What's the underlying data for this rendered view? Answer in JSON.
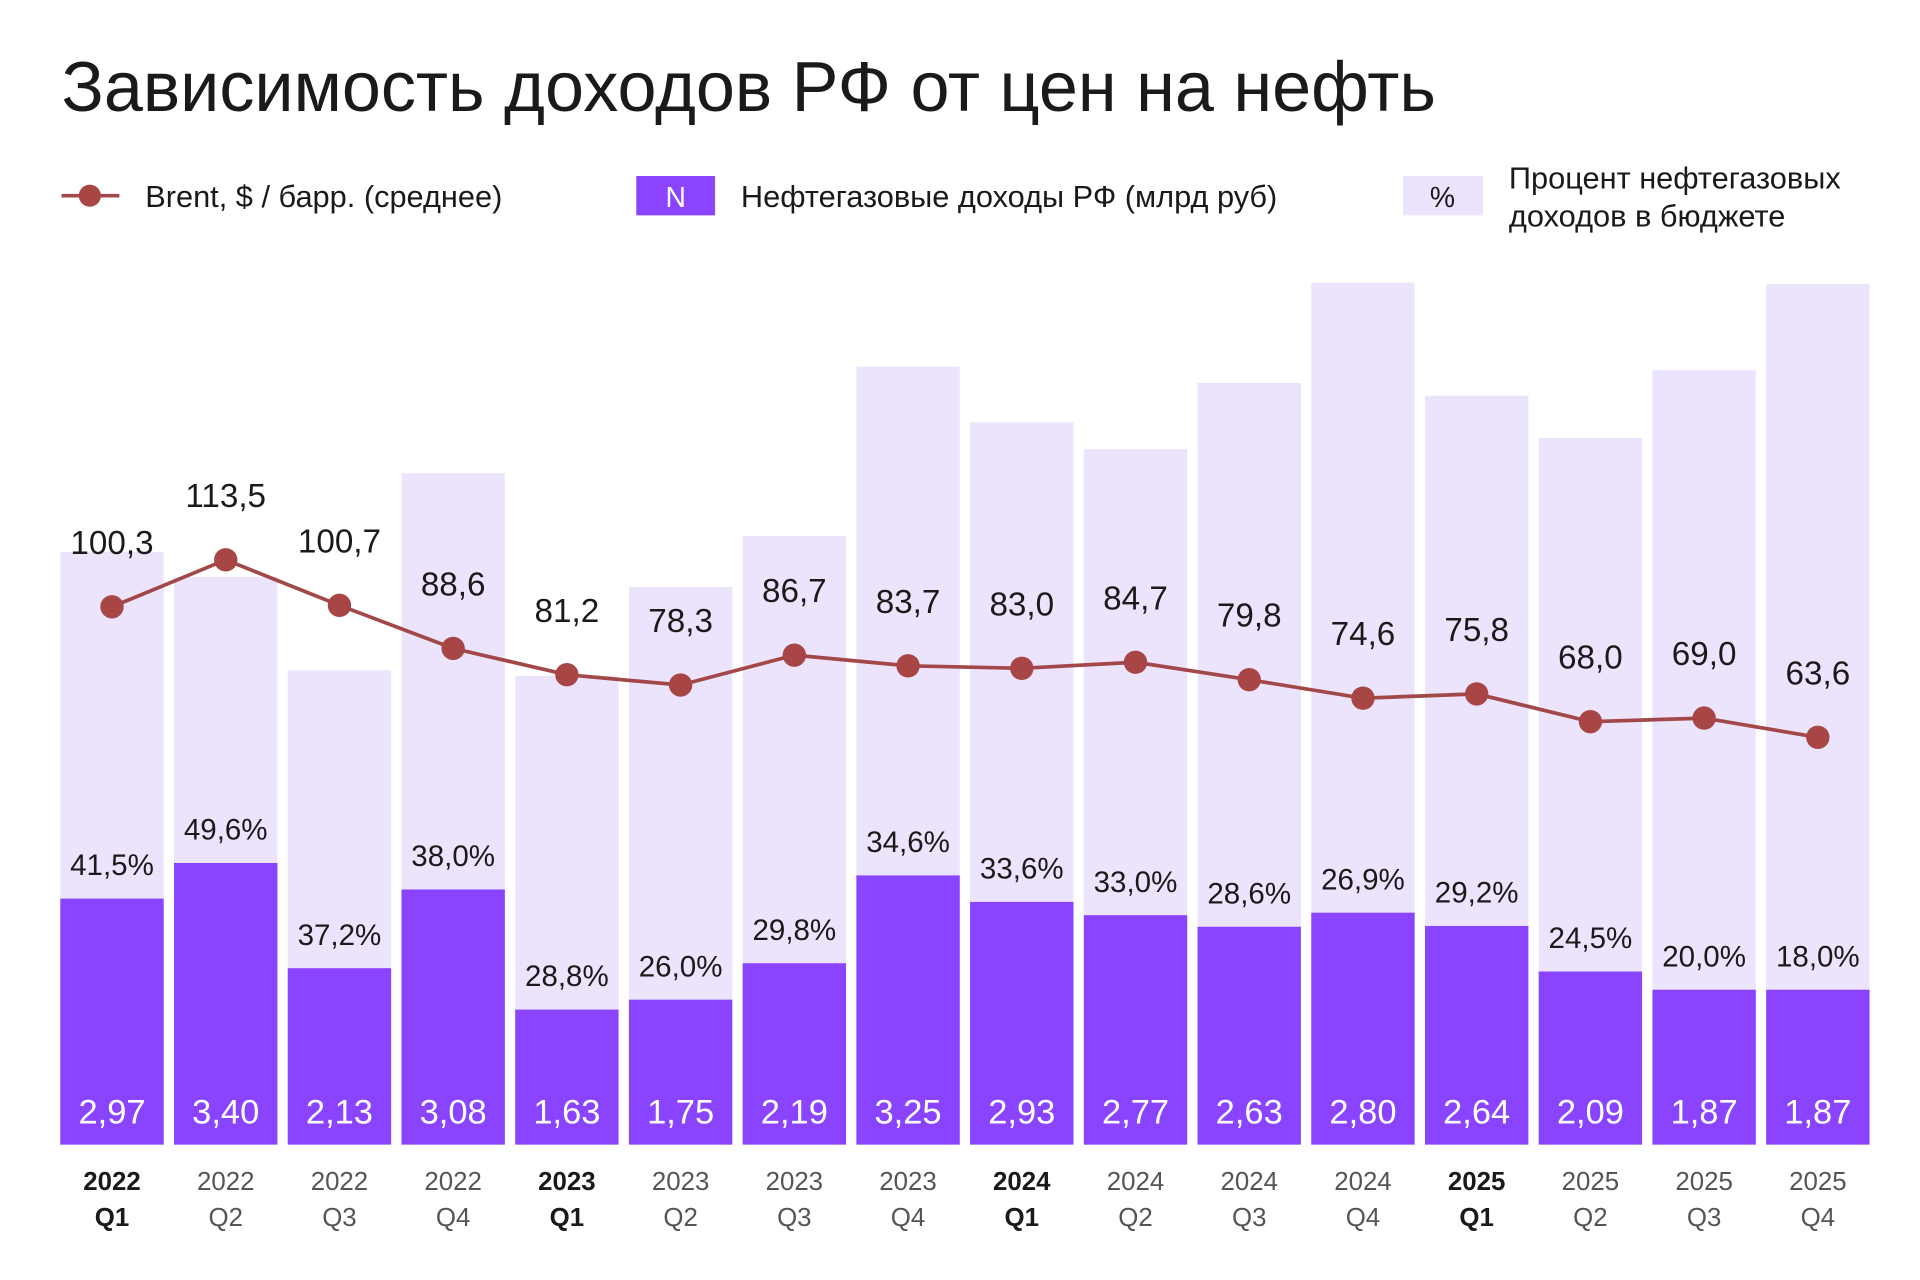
{
  "chart_data": {
    "type": "bar",
    "title": "Зависимость доходов РФ от цен на нефть",
    "legend": {
      "placement": "top",
      "line_label": "Brent, $ / барр. (среднее)",
      "bar_label": "Нефтегазовые доходы РФ (млрд руб)",
      "bar_symbol": "N",
      "share_label_line1": "Процент нефтегазовых",
      "share_label_line2": "доходов в бюджете",
      "share_symbol": "%"
    },
    "categories": [
      {
        "year": "2022",
        "quarter": "Q1",
        "bold": true
      },
      {
        "year": "2022",
        "quarter": "Q2",
        "bold": false
      },
      {
        "year": "2022",
        "quarter": "Q3",
        "bold": false
      },
      {
        "year": "2022",
        "quarter": "Q4",
        "bold": false
      },
      {
        "year": "2023",
        "quarter": "Q1",
        "bold": true
      },
      {
        "year": "2023",
        "quarter": "Q2",
        "bold": false
      },
      {
        "year": "2023",
        "quarter": "Q3",
        "bold": false
      },
      {
        "year": "2023",
        "quarter": "Q4",
        "bold": false
      },
      {
        "year": "2024",
        "quarter": "Q1",
        "bold": true
      },
      {
        "year": "2024",
        "quarter": "Q2",
        "bold": false
      },
      {
        "year": "2024",
        "quarter": "Q3",
        "bold": false
      },
      {
        "year": "2024",
        "quarter": "Q4",
        "bold": false
      },
      {
        "year": "2025",
        "quarter": "Q1",
        "bold": true
      },
      {
        "year": "2025",
        "quarter": "Q2",
        "bold": false
      },
      {
        "year": "2025",
        "quarter": "Q3",
        "bold": false
      },
      {
        "year": "2025",
        "quarter": "Q4",
        "bold": false
      }
    ],
    "series": [
      {
        "name": "Нефтегазовые доходы РФ (млрд руб)",
        "type": "bar",
        "values": [
          2.97,
          3.4,
          2.13,
          3.08,
          1.63,
          1.75,
          2.19,
          3.25,
          2.93,
          2.77,
          2.63,
          2.8,
          2.64,
          2.09,
          1.87,
          1.87
        ],
        "labels": [
          "2,97",
          "3,40",
          "2,13",
          "3,08",
          "1,63",
          "1,75",
          "2,19",
          "3,25",
          "2,93",
          "2,77",
          "2,63",
          "2,80",
          "2,64",
          "2,09",
          "1,87",
          "1,87"
        ]
      },
      {
        "name": "Процент нефтегазовых доходов в бюджете",
        "type": "bar",
        "values": [
          41.5,
          49.6,
          37.2,
          38.0,
          28.8,
          26.0,
          29.8,
          34.6,
          33.6,
          33.0,
          28.6,
          26.9,
          29.2,
          24.5,
          20.0,
          18.0
        ],
        "labels": [
          "41,5%",
          "49,6%",
          "37,2%",
          "38,0%",
          "28,8%",
          "26,0%",
          "29,8%",
          "34,6%",
          "33,6%",
          "33,0%",
          "28,6%",
          "26,9%",
          "29,2%",
          "24,5%",
          "20,0%",
          "18,0%"
        ]
      },
      {
        "name": "Brent, $ / барр. (среднее)",
        "type": "line",
        "values": [
          100.3,
          113.5,
          100.7,
          88.6,
          81.2,
          78.3,
          86.7,
          83.7,
          83.0,
          84.7,
          79.8,
          74.6,
          75.8,
          68.0,
          69.0,
          63.6
        ],
        "labels": [
          "100,3",
          "113,5",
          "100,7",
          "88,6",
          "81,2",
          "78,3",
          "86,7",
          "83,7",
          "83,0",
          "84,7",
          "79,8",
          "74,6",
          "75,8",
          "68,0",
          "69,0",
          "63,6"
        ]
      }
    ],
    "grid": false,
    "colors": {
      "bar": "#8A44FF",
      "share": "#ECE3FD",
      "line": "#A24848",
      "marker": "#A84646",
      "text": "#1a1a1a"
    }
  }
}
